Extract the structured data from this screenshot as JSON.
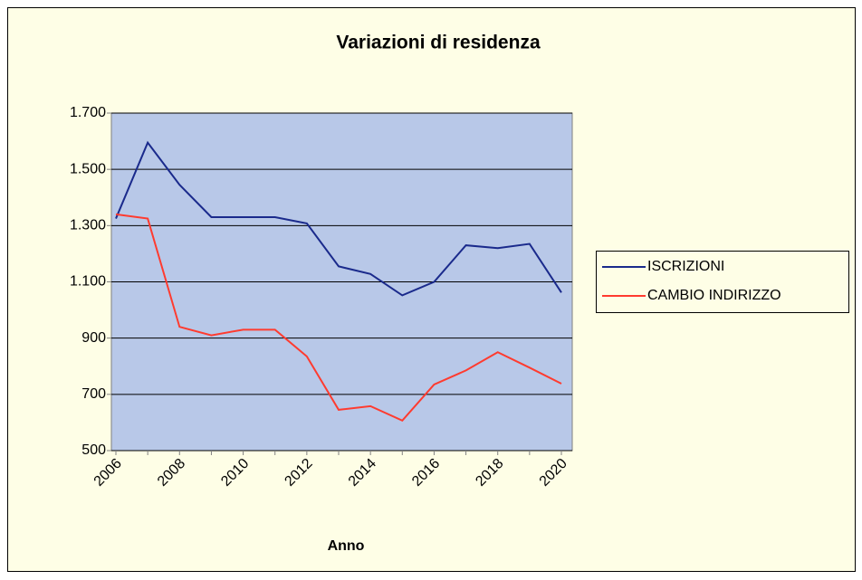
{
  "chart_data": {
    "type": "line",
    "title": "Variazioni di residenza",
    "x_label": "Anno",
    "categories": [
      "2006",
      null,
      "2008",
      null,
      "2010",
      null,
      "2012",
      null,
      "2014",
      null,
      "2016",
      null,
      "2018",
      null,
      "2020"
    ],
    "series": [
      {
        "name": "ISCRIZIONI",
        "color": "#1a2a8c",
        "values": [
          1325,
          1595,
          1445,
          1330,
          1330,
          1330,
          1308,
          1155,
          1128,
          1052,
          1100,
          1230,
          1220,
          1235,
          1062
        ]
      },
      {
        "name": "CAMBIO INDIRIZZO",
        "color": "#ff3b2f",
        "values": [
          1340,
          1325,
          940,
          910,
          930,
          930,
          835,
          645,
          658,
          607,
          735,
          785,
          850,
          795,
          738
        ]
      }
    ],
    "ylim": [
      500,
      1700
    ],
    "yticks": [
      500,
      700,
      900,
      {
        "value": 1100,
        "label": "1.100"
      },
      {
        "value": 1300,
        "label": "1.300"
      },
      {
        "value": 1500,
        "label": "1.500"
      },
      {
        "value": 1700,
        "label": "1.700"
      }
    ],
    "grid": true,
    "legend": "right"
  }
}
